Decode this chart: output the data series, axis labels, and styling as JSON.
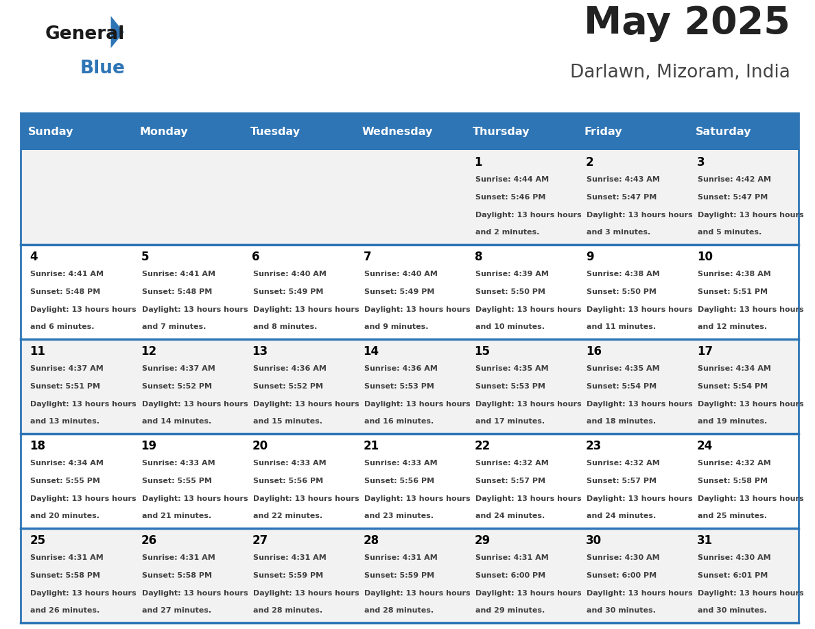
{
  "title": "May 2025",
  "subtitle": "Darlawn, Mizoram, India",
  "days_of_week": [
    "Sunday",
    "Monday",
    "Tuesday",
    "Wednesday",
    "Thursday",
    "Friday",
    "Saturday"
  ],
  "header_bg": "#2E75B6",
  "header_text": "#FFFFFF",
  "row_bg_odd": "#F2F2F2",
  "row_bg_even": "#FFFFFF",
  "cell_border": "#2E75B6",
  "day_num_color": "#000000",
  "info_text_color": "#404040",
  "title_color": "#222222",
  "subtitle_color": "#444444",
  "calendar_data": [
    [
      null,
      null,
      null,
      null,
      {
        "day": 1,
        "sunrise": "4:44 AM",
        "sunset": "5:46 PM",
        "daylight": "13 hours and 2 minutes."
      },
      {
        "day": 2,
        "sunrise": "4:43 AM",
        "sunset": "5:47 PM",
        "daylight": "13 hours and 3 minutes."
      },
      {
        "day": 3,
        "sunrise": "4:42 AM",
        "sunset": "5:47 PM",
        "daylight": "13 hours and 5 minutes."
      }
    ],
    [
      {
        "day": 4,
        "sunrise": "4:41 AM",
        "sunset": "5:48 PM",
        "daylight": "13 hours and 6 minutes."
      },
      {
        "day": 5,
        "sunrise": "4:41 AM",
        "sunset": "5:48 PM",
        "daylight": "13 hours and 7 minutes."
      },
      {
        "day": 6,
        "sunrise": "4:40 AM",
        "sunset": "5:49 PM",
        "daylight": "13 hours and 8 minutes."
      },
      {
        "day": 7,
        "sunrise": "4:40 AM",
        "sunset": "5:49 PM",
        "daylight": "13 hours and 9 minutes."
      },
      {
        "day": 8,
        "sunrise": "4:39 AM",
        "sunset": "5:50 PM",
        "daylight": "13 hours and 10 minutes."
      },
      {
        "day": 9,
        "sunrise": "4:38 AM",
        "sunset": "5:50 PM",
        "daylight": "13 hours and 11 minutes."
      },
      {
        "day": 10,
        "sunrise": "4:38 AM",
        "sunset": "5:51 PM",
        "daylight": "13 hours and 12 minutes."
      }
    ],
    [
      {
        "day": 11,
        "sunrise": "4:37 AM",
        "sunset": "5:51 PM",
        "daylight": "13 hours and 13 minutes."
      },
      {
        "day": 12,
        "sunrise": "4:37 AM",
        "sunset": "5:52 PM",
        "daylight": "13 hours and 14 minutes."
      },
      {
        "day": 13,
        "sunrise": "4:36 AM",
        "sunset": "5:52 PM",
        "daylight": "13 hours and 15 minutes."
      },
      {
        "day": 14,
        "sunrise": "4:36 AM",
        "sunset": "5:53 PM",
        "daylight": "13 hours and 16 minutes."
      },
      {
        "day": 15,
        "sunrise": "4:35 AM",
        "sunset": "5:53 PM",
        "daylight": "13 hours and 17 minutes."
      },
      {
        "day": 16,
        "sunrise": "4:35 AM",
        "sunset": "5:54 PM",
        "daylight": "13 hours and 18 minutes."
      },
      {
        "day": 17,
        "sunrise": "4:34 AM",
        "sunset": "5:54 PM",
        "daylight": "13 hours and 19 minutes."
      }
    ],
    [
      {
        "day": 18,
        "sunrise": "4:34 AM",
        "sunset": "5:55 PM",
        "daylight": "13 hours and 20 minutes."
      },
      {
        "day": 19,
        "sunrise": "4:33 AM",
        "sunset": "5:55 PM",
        "daylight": "13 hours and 21 minutes."
      },
      {
        "day": 20,
        "sunrise": "4:33 AM",
        "sunset": "5:56 PM",
        "daylight": "13 hours and 22 minutes."
      },
      {
        "day": 21,
        "sunrise": "4:33 AM",
        "sunset": "5:56 PM",
        "daylight": "13 hours and 23 minutes."
      },
      {
        "day": 22,
        "sunrise": "4:32 AM",
        "sunset": "5:57 PM",
        "daylight": "13 hours and 24 minutes."
      },
      {
        "day": 23,
        "sunrise": "4:32 AM",
        "sunset": "5:57 PM",
        "daylight": "13 hours and 24 minutes."
      },
      {
        "day": 24,
        "sunrise": "4:32 AM",
        "sunset": "5:58 PM",
        "daylight": "13 hours and 25 minutes."
      }
    ],
    [
      {
        "day": 25,
        "sunrise": "4:31 AM",
        "sunset": "5:58 PM",
        "daylight": "13 hours and 26 minutes."
      },
      {
        "day": 26,
        "sunrise": "4:31 AM",
        "sunset": "5:58 PM",
        "daylight": "13 hours and 27 minutes."
      },
      {
        "day": 27,
        "sunrise": "4:31 AM",
        "sunset": "5:59 PM",
        "daylight": "13 hours and 28 minutes."
      },
      {
        "day": 28,
        "sunrise": "4:31 AM",
        "sunset": "5:59 PM",
        "daylight": "13 hours and 28 minutes."
      },
      {
        "day": 29,
        "sunrise": "4:31 AM",
        "sunset": "6:00 PM",
        "daylight": "13 hours and 29 minutes."
      },
      {
        "day": 30,
        "sunrise": "4:30 AM",
        "sunset": "6:00 PM",
        "daylight": "13 hours and 30 minutes."
      },
      {
        "day": 31,
        "sunrise": "4:30 AM",
        "sunset": "6:01 PM",
        "daylight": "13 hours and 30 minutes."
      }
    ]
  ]
}
